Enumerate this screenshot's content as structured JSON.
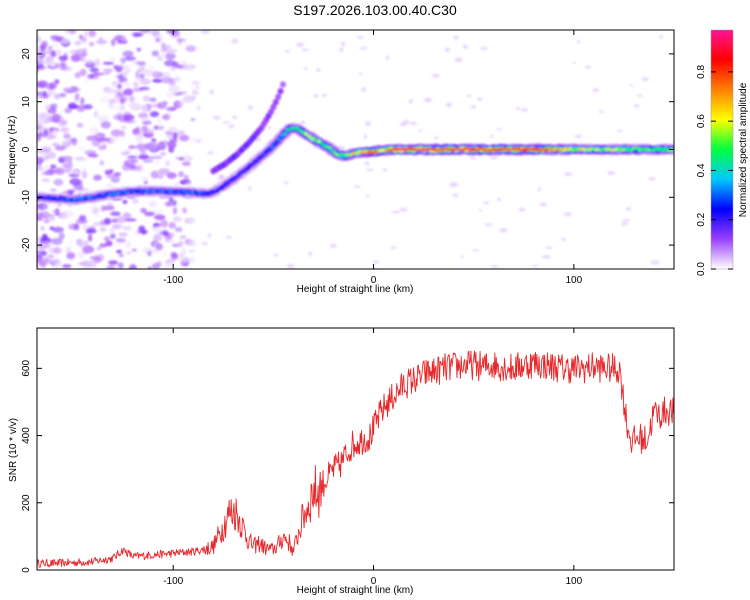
{
  "title": "S197.2026.103.00.40.C30",
  "chart_data": [
    {
      "type": "heatmap",
      "xlabel": "Height of straight line (km)",
      "ylabel": "Frequency (Hz)",
      "xlim": [
        -168,
        150
      ],
      "ylim": [
        -25,
        25
      ],
      "xticks": [
        -100,
        0,
        100
      ],
      "yticks": [
        -20,
        -10,
        0,
        10,
        20
      ],
      "colorbar": {
        "label": "Normalized spectral amplitude",
        "range": [
          0,
          0.97
        ],
        "ticks": [
          0.0,
          0.2,
          0.4,
          0.6,
          0.8
        ],
        "tick_labels": [
          "0.0",
          "0.2",
          "0.4",
          "0.6",
          "0.8"
        ],
        "colors": [
          "#ffffff",
          "#9a40ff",
          "#0000ff",
          "#00c8ff",
          "#00ff40",
          "#ffff00",
          "#ff8000",
          "#ff0000",
          "#ff1493"
        ]
      },
      "ridge": {
        "x": [
          -168,
          -160,
          -150,
          -140,
          -130,
          -120,
          -110,
          -100,
          -90,
          -82,
          -76,
          -70,
          -64,
          -58,
          -52,
          -46,
          -42,
          -38,
          -34,
          -30,
          -26,
          -22,
          -18,
          -14,
          -10,
          -6,
          -2,
          0,
          5,
          10,
          20,
          40,
          60,
          80,
          100,
          120,
          140,
          150
        ],
        "frequency": [
          -10,
          -10.2,
          -10.5,
          -10,
          -9.2,
          -8.8,
          -8.7,
          -8.8,
          -9,
          -9.3,
          -8,
          -6.2,
          -4.3,
          -2.2,
          0,
          2.6,
          4.4,
          4.4,
          3.2,
          2.2,
          1.2,
          0.3,
          -1,
          -1.4,
          -0.8,
          -0.5,
          -0.5,
          -0.5,
          -0.1,
          0,
          0,
          0,
          0,
          0,
          0,
          0,
          0,
          0
        ],
        "amplitude": [
          0.25,
          0.25,
          0.3,
          0.3,
          0.3,
          0.3,
          0.3,
          0.3,
          0.3,
          0.25,
          0.25,
          0.25,
          0.25,
          0.25,
          0.3,
          0.35,
          0.45,
          0.45,
          0.55,
          0.55,
          0.5,
          0.5,
          0.5,
          0.55,
          0.6,
          0.7,
          0.75,
          0.8,
          0.65,
          0.9,
          0.9,
          0.9,
          0.85,
          0.85,
          0.6,
          0.55,
          0.5,
          0.5
        ]
      },
      "secondary_branch": {
        "x": [
          -80,
          -74,
          -68,
          -62,
          -56,
          -51,
          -47,
          -44
        ],
        "frequency": [
          -4.5,
          -3,
          -1,
          1.5,
          4.5,
          8,
          11.5,
          15
        ],
        "amplitude": [
          0.12,
          0.14,
          0.15,
          0.15,
          0.14,
          0.13,
          0.12,
          0.1
        ]
      },
      "noise_region": {
        "x_range": [
          -168,
          -90
        ],
        "frequency_range": [
          -25,
          25
        ],
        "amplitude_max": 0.15
      }
    },
    {
      "type": "line",
      "xlabel": "Height of straight line (km)",
      "ylabel": "SNR (10 * v/v)",
      "xlim": [
        -168,
        150
      ],
      "ylim": [
        0,
        720
      ],
      "xticks": [
        -100,
        0,
        100
      ],
      "yticks": [
        0,
        200,
        400,
        600
      ],
      "series": [
        {
          "name": "SNR",
          "color": "#e8272a",
          "x": [
            -168,
            -160,
            -150,
            -140,
            -130,
            -125,
            -120,
            -110,
            -100,
            -90,
            -85,
            -80,
            -75,
            -72,
            -69,
            -66,
            -63,
            -60,
            -57,
            -54,
            -51,
            -48,
            -45,
            -42,
            -40,
            -38,
            -35,
            -32,
            -30,
            -28,
            -25,
            -22,
            -20,
            -17,
            -14,
            -11,
            -8,
            -5,
            -2,
            0,
            3,
            6,
            9,
            12,
            15,
            18,
            22,
            26,
            30,
            35,
            40,
            45,
            50,
            55,
            60,
            65,
            70,
            75,
            80,
            85,
            90,
            95,
            100,
            105,
            110,
            115,
            120,
            123,
            125,
            127,
            129,
            131,
            133,
            135,
            137,
            140,
            143,
            146,
            150
          ],
          "values": [
            20,
            20,
            22,
            25,
            35,
            60,
            40,
            45,
            50,
            55,
            60,
            70,
            130,
            170,
            175,
            140,
            95,
            70,
            80,
            65,
            60,
            70,
            100,
            80,
            55,
            100,
            160,
            200,
            240,
            230,
            260,
            280,
            300,
            310,
            340,
            370,
            380,
            390,
            395,
            420,
            460,
            490,
            510,
            530,
            550,
            560,
            570,
            585,
            590,
            600,
            605,
            610,
            610,
            605,
            610,
            605,
            600,
            610,
            615,
            610,
            605,
            600,
            600,
            600,
            605,
            600,
            600,
            595,
            500,
            420,
            380,
            390,
            395,
            385,
            395,
            470,
            460,
            475,
            470
          ]
        }
      ]
    }
  ]
}
